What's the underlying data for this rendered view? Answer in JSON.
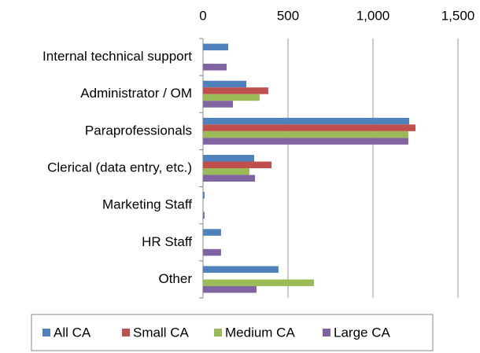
{
  "chart_data": {
    "type": "hbar",
    "categories": [
      "Internal technical support",
      "Administrator / OM",
      "Paraprofessionals",
      "Clerical (data entry, etc.)",
      "Marketing Staff",
      "HR Staff",
      "Other"
    ],
    "series": [
      {
        "name": "All CA",
        "color": "#4f81bd",
        "values": [
          148,
          255,
          1213,
          301,
          9,
          106,
          444
        ]
      },
      {
        "name": "Small CA",
        "color": "#c0504d",
        "values": [
          0,
          384,
          1250,
          403,
          0,
          0,
          0
        ]
      },
      {
        "name": "Medium CA",
        "color": "#9bbb59",
        "values": [
          0,
          333,
          1208,
          273,
          0,
          0,
          653
        ]
      },
      {
        "name": "Large CA",
        "color": "#8064a2",
        "values": [
          139,
          176,
          1208,
          306,
          9,
          106,
          315
        ]
      }
    ],
    "xlim": [
      0,
      1500
    ],
    "xticks": [
      0,
      500,
      {
        "value": 1000,
        "label": "1,000"
      },
      {
        "value": 1500,
        "label": "1,500"
      }
    ],
    "grid": true,
    "legend": "bottom"
  }
}
